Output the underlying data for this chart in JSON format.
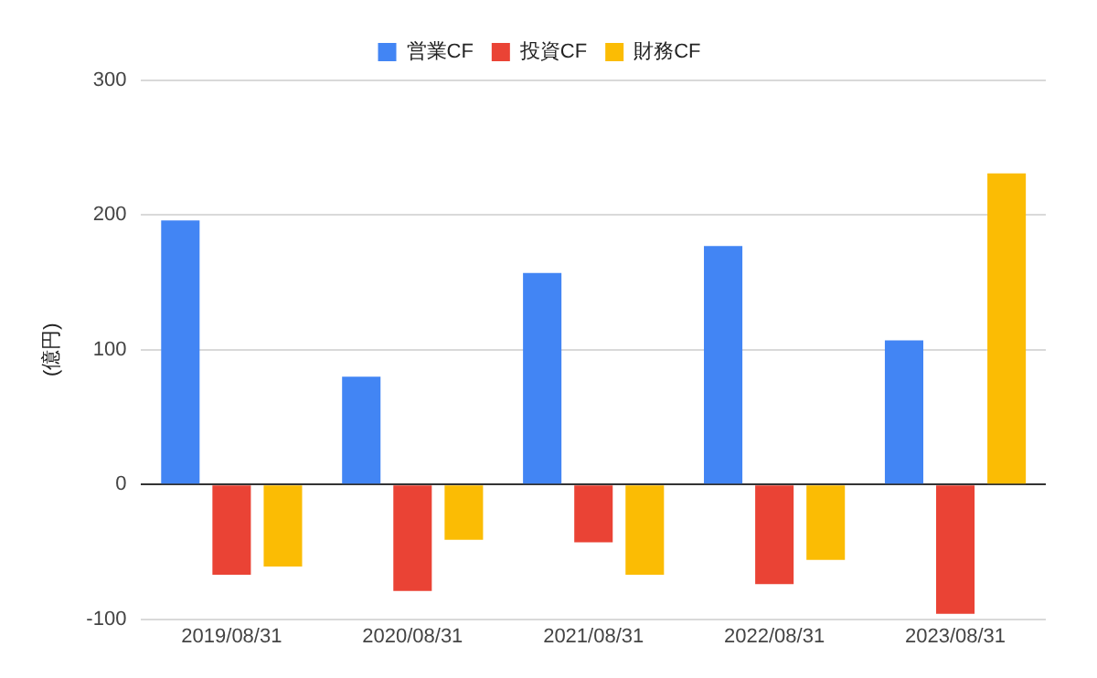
{
  "chart_data": {
    "type": "bar",
    "ylabel": "(億円)",
    "categories": [
      "2019/08/31",
      "2020/08/31",
      "2021/08/31",
      "2022/08/31",
      "2023/08/31"
    ],
    "series": [
      {
        "name": "営業CF",
        "color": "#4285f4",
        "values": [
          196,
          80,
          157,
          177,
          107
        ]
      },
      {
        "name": "投資CF",
        "color": "#ea4335",
        "values": [
          -67,
          -79,
          -43,
          -74,
          -96
        ]
      },
      {
        "name": "財務CF",
        "color": "#fbbc04",
        "values": [
          -61,
          -41,
          -67,
          -56,
          231
        ]
      }
    ],
    "ylim": [
      -100,
      300
    ],
    "yticks": [
      -100,
      0,
      100,
      200,
      300
    ],
    "grid": "y",
    "legend": "top"
  }
}
